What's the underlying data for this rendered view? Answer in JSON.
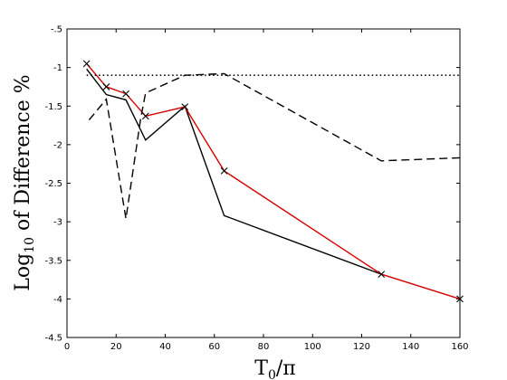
{
  "chart_data": {
    "type": "line",
    "title": "",
    "xlabel_main": "T",
    "xlabel_sub": "0",
    "xlabel_tail": "/π",
    "ylabel_main": "Log",
    "ylabel_sub": "10",
    "ylabel_tail": " of Difference %",
    "xlim": [
      0,
      160
    ],
    "ylim": [
      -4.5,
      -0.5
    ],
    "xticks": [
      0,
      20,
      40,
      60,
      80,
      100,
      120,
      140,
      160
    ],
    "yticks": [
      -4.5,
      -4,
      -3.5,
      -3,
      -2.5,
      -2,
      -1.5,
      -1,
      -0.5
    ],
    "grid": false,
    "legend": "none",
    "series": [
      {
        "color": "#000000",
        "style": "solid",
        "marker": "none",
        "x": [
          8,
          16,
          24,
          32,
          48,
          64,
          128
        ],
        "y": [
          -1.02,
          -1.35,
          -1.42,
          -1.94,
          -1.5,
          -2.92,
          -3.68
        ]
      },
      {
        "color": "#d40000",
        "style": "solid",
        "marker": "x",
        "x": [
          8,
          16,
          24,
          32,
          48,
          64,
          128,
          160
        ],
        "y": [
          -0.95,
          -1.25,
          -1.34,
          -1.63,
          -1.51,
          -2.34,
          -3.68,
          -4.0
        ]
      },
      {
        "color": "#000000",
        "style": "dashed",
        "marker": "none",
        "x": [
          9,
          16,
          24,
          30,
          32,
          48,
          64,
          128,
          160
        ],
        "y": [
          -1.68,
          -1.41,
          -2.96,
          -1.66,
          -1.33,
          -1.1,
          -1.08,
          -2.21,
          -2.17
        ]
      },
      {
        "color": "#000000",
        "style": "dotted",
        "marker": "none",
        "x": [
          8,
          160
        ],
        "y": [
          -1.1,
          -1.1
        ]
      }
    ]
  }
}
